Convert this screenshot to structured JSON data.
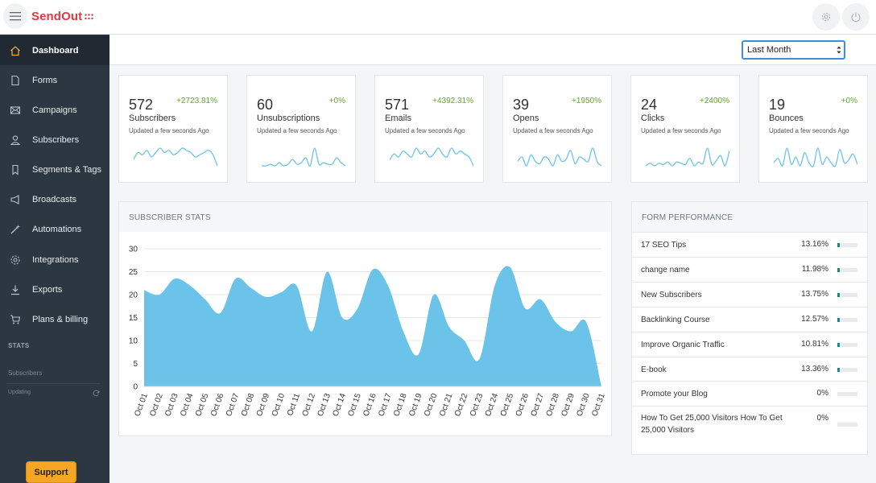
{
  "app": {
    "logo": "SendOut"
  },
  "sidebar": {
    "items": [
      {
        "label": "Dashboard",
        "icon": "home-icon",
        "active": true
      },
      {
        "label": "Forms",
        "icon": "document-icon"
      },
      {
        "label": "Campaigns",
        "icon": "mail-icon"
      },
      {
        "label": "Subscribers",
        "icon": "user-icon"
      },
      {
        "label": "Segments & Tags",
        "icon": "bookmark-icon"
      },
      {
        "label": "Broadcasts",
        "icon": "megaphone-icon"
      },
      {
        "label": "Automations",
        "icon": "wand-icon"
      },
      {
        "label": "Integrations",
        "icon": "gear-icon"
      },
      {
        "label": "Exports",
        "icon": "download-icon"
      },
      {
        "label": "Plans & billing",
        "icon": "cart-icon"
      }
    ],
    "stats_heading": "STATS",
    "stats_subscribers": "Subscribers",
    "stats_updating": "Updating",
    "support_label": "Support"
  },
  "filter": {
    "selected": "Last Month"
  },
  "cards": [
    {
      "value": "572",
      "change": "+2723.81%",
      "label": "Subscribers",
      "updated": "Updated a few seconds Ago",
      "spark": [
        9,
        12,
        11,
        13,
        10,
        12,
        14,
        12,
        13,
        11,
        12,
        14,
        13,
        12,
        10,
        11,
        12,
        13,
        11,
        6
      ]
    },
    {
      "value": "60",
      "change": "+0%",
      "label": "Unsubscriptions",
      "updated": "Updated a few seconds Ago",
      "spark": [
        8,
        8,
        9,
        8,
        10,
        8,
        9,
        12,
        9,
        10,
        13,
        8,
        19,
        9,
        10,
        9,
        9,
        13,
        10,
        8
      ]
    },
    {
      "value": "571",
      "change": "+4392.31%",
      "label": "Emails",
      "updated": "Updated a few seconds Ago",
      "spark": [
        11,
        13,
        12,
        14,
        13,
        12,
        15,
        13,
        14,
        12,
        13,
        15,
        13,
        12,
        15,
        13,
        14,
        13,
        12,
        9
      ]
    },
    {
      "value": "39",
      "change": "+1950%",
      "label": "Opens",
      "updated": "Updated a few seconds Ago",
      "spark": [
        8,
        10,
        6,
        11,
        8,
        7,
        10,
        9,
        6,
        11,
        8,
        9,
        13,
        7,
        10,
        9,
        8,
        14,
        8,
        6
      ]
    },
    {
      "value": "24",
      "change": "+2400%",
      "label": "Clicks",
      "updated": "Updated a few seconds Ago",
      "spark": [
        6,
        8,
        6,
        8,
        7,
        9,
        6,
        9,
        8,
        7,
        12,
        6,
        9,
        8,
        20,
        7,
        10,
        14,
        6,
        18
      ]
    },
    {
      "value": "19",
      "change": "+0%",
      "label": "Bounces",
      "updated": "Updated a few seconds Ago",
      "spark": [
        8,
        11,
        6,
        18,
        7,
        12,
        6,
        15,
        8,
        6,
        18,
        7,
        12,
        8,
        6,
        17,
        8,
        10,
        14,
        7
      ]
    }
  ],
  "subscriber_stats": {
    "title": "SUBSCRIBER STATS"
  },
  "chart_data": {
    "type": "area",
    "title": "SUBSCRIBER STATS",
    "x": [
      "Oct 01",
      "Oct 02",
      "Oct 03",
      "Oct 04",
      "Oct 05",
      "Oct 06",
      "Oct 07",
      "Oct 08",
      "Oct 09",
      "Oct 10",
      "Oct 11",
      "Oct 12",
      "Oct 13",
      "Oct 14",
      "Oct 15",
      "Oct 16",
      "Oct 17",
      "Oct 18",
      "Oct 19",
      "Oct 20",
      "Oct 21",
      "Oct 22",
      "Oct 23",
      "Oct 24",
      "Oct 25",
      "Oct 26",
      "Oct 27",
      "Oct 28",
      "Oct 29",
      "Oct 30",
      "Oct 31"
    ],
    "values": [
      21,
      20,
      23.5,
      22,
      19,
      16,
      23.5,
      21.5,
      19.5,
      20.5,
      22,
      12,
      25,
      15,
      17,
      25.5,
      22,
      12,
      7,
      20,
      13,
      10,
      6,
      22,
      26,
      17,
      19,
      14,
      12,
      14,
      0
    ],
    "ylim": [
      0,
      30
    ],
    "yticks": [
      0,
      5,
      10,
      15,
      20,
      25,
      30
    ],
    "grid": true,
    "color": "#6cc3ea"
  },
  "form_performance": {
    "title": "FORM PERFORMANCE",
    "rows": [
      {
        "name": "17 SEO Tips",
        "pct": "13.16%",
        "value": 13.16
      },
      {
        "name": "change name",
        "pct": "11.98%",
        "value": 11.98
      },
      {
        "name": "New Subscribers",
        "pct": "13.75%",
        "value": 13.75
      },
      {
        "name": "Backlinking Course",
        "pct": "12.57%",
        "value": 12.57
      },
      {
        "name": "Improve Organic Traffic",
        "pct": "10.81%",
        "value": 10.81
      },
      {
        "name": "E-book",
        "pct": "13.36%",
        "value": 13.36
      },
      {
        "name": "Promote your Blog",
        "pct": "0%",
        "value": 0
      },
      {
        "name": "How To Get 25,000 Visitors How To Get 25,000 Visitors",
        "pct": "0%",
        "value": 0
      }
    ]
  },
  "colors": {
    "accent": "#e0393f",
    "sidebar": "#2c3742",
    "positive": "#5fa82b",
    "area": "#6cc3ea",
    "bar_fill": "#1a8a86",
    "support": "#f5a623"
  }
}
